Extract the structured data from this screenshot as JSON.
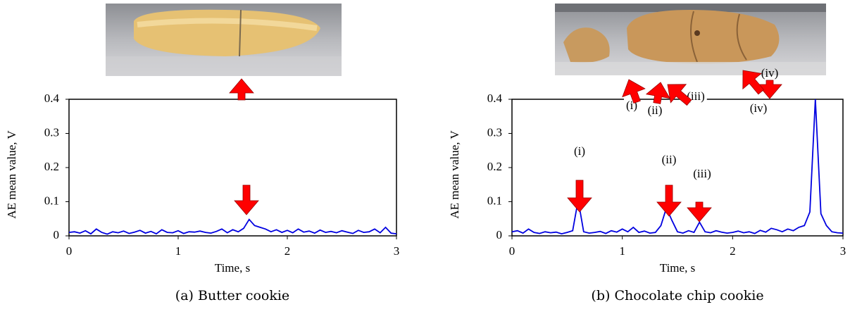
{
  "chart_data": [
    {
      "type": "line",
      "caption": "(a) Butter cookie",
      "xlabel": "Time, s",
      "ylabel": "AE mean value, V",
      "xlim": [
        0,
        3
      ],
      "ylim": [
        0,
        0.4
      ],
      "xticks": [
        0,
        1,
        2,
        3
      ],
      "yticks": [
        0,
        0.1,
        0.2,
        0.3,
        0.4
      ],
      "x": [
        0,
        0.05,
        0.1,
        0.15,
        0.2,
        0.25,
        0.3,
        0.35,
        0.4,
        0.45,
        0.5,
        0.55,
        0.6,
        0.65,
        0.7,
        0.75,
        0.8,
        0.85,
        0.9,
        0.95,
        1,
        1.05,
        1.1,
        1.15,
        1.2,
        1.25,
        1.3,
        1.35,
        1.4,
        1.45,
        1.5,
        1.55,
        1.6,
        1.65,
        1.7,
        1.75,
        1.8,
        1.85,
        1.9,
        1.95,
        2,
        2.05,
        2.1,
        2.15,
        2.2,
        2.25,
        2.3,
        2.35,
        2.4,
        2.45,
        2.5,
        2.55,
        2.6,
        2.65,
        2.7,
        2.75,
        2.8,
        2.85,
        2.9,
        2.95,
        3
      ],
      "series": [
        {
          "color": "#0000e0",
          "values": [
            0.01,
            0.012,
            0.008,
            0.015,
            0.006,
            0.02,
            0.01,
            0.005,
            0.012,
            0.009,
            0.014,
            0.007,
            0.011,
            0.016,
            0.008,
            0.013,
            0.006,
            0.018,
            0.01,
            0.009,
            0.015,
            0.007,
            0.012,
            0.011,
            0.014,
            0.01,
            0.008,
            0.013,
            0.02,
            0.009,
            0.018,
            0.012,
            0.022,
            0.048,
            0.03,
            0.025,
            0.02,
            0.012,
            0.018,
            0.01,
            0.016,
            0.009,
            0.02,
            0.011,
            0.014,
            0.008,
            0.017,
            0.01,
            0.013,
            0.009,
            0.015,
            0.011,
            0.007,
            0.016,
            0.01,
            0.012,
            0.02,
            0.009,
            0.025,
            0.008,
            0.006
          ]
        }
      ]
    },
    {
      "type": "line",
      "caption": "(b) Chocolate chip cookie",
      "xlabel": "Time, s",
      "ylabel": "AE mean value, V",
      "xlim": [
        0,
        3
      ],
      "ylim": [
        0,
        0.4
      ],
      "xticks": [
        0,
        1,
        2,
        3
      ],
      "yticks": [
        0,
        0.1,
        0.2,
        0.3,
        0.4
      ],
      "x": [
        0,
        0.05,
        0.1,
        0.15,
        0.2,
        0.25,
        0.3,
        0.35,
        0.4,
        0.45,
        0.5,
        0.55,
        0.6,
        0.65,
        0.7,
        0.75,
        0.8,
        0.85,
        0.9,
        0.95,
        1,
        1.05,
        1.1,
        1.15,
        1.2,
        1.25,
        1.3,
        1.35,
        1.4,
        1.45,
        1.5,
        1.55,
        1.6,
        1.65,
        1.7,
        1.75,
        1.8,
        1.85,
        1.9,
        1.95,
        2,
        2.05,
        2.1,
        2.15,
        2.2,
        2.25,
        2.3,
        2.35,
        2.4,
        2.45,
        2.5,
        2.55,
        2.6,
        2.65,
        2.7,
        2.75,
        2.8,
        2.85,
        2.9,
        2.95,
        3
      ],
      "series": [
        {
          "color": "#0000e0",
          "values": [
            0.012,
            0.015,
            0.008,
            0.02,
            0.01,
            0.007,
            0.012,
            0.009,
            0.011,
            0.006,
            0.01,
            0.015,
            0.105,
            0.012,
            0.008,
            0.01,
            0.013,
            0.007,
            0.015,
            0.011,
            0.02,
            0.012,
            0.025,
            0.01,
            0.014,
            0.008,
            0.01,
            0.03,
            0.082,
            0.045,
            0.012,
            0.008,
            0.015,
            0.01,
            0.04,
            0.012,
            0.009,
            0.015,
            0.011,
            0.008,
            0.01,
            0.014,
            0.009,
            0.012,
            0.007,
            0.016,
            0.011,
            0.022,
            0.018,
            0.012,
            0.02,
            0.015,
            0.025,
            0.03,
            0.07,
            0.4,
            0.065,
            0.03,
            0.012,
            0.009,
            0.008
          ]
        }
      ],
      "annotations": [
        "(i)",
        "(ii)",
        "(iii)",
        "(iv)"
      ],
      "photo_labels": [
        "(i)",
        "(ii)",
        "(iii)",
        "(iv)"
      ]
    }
  ]
}
